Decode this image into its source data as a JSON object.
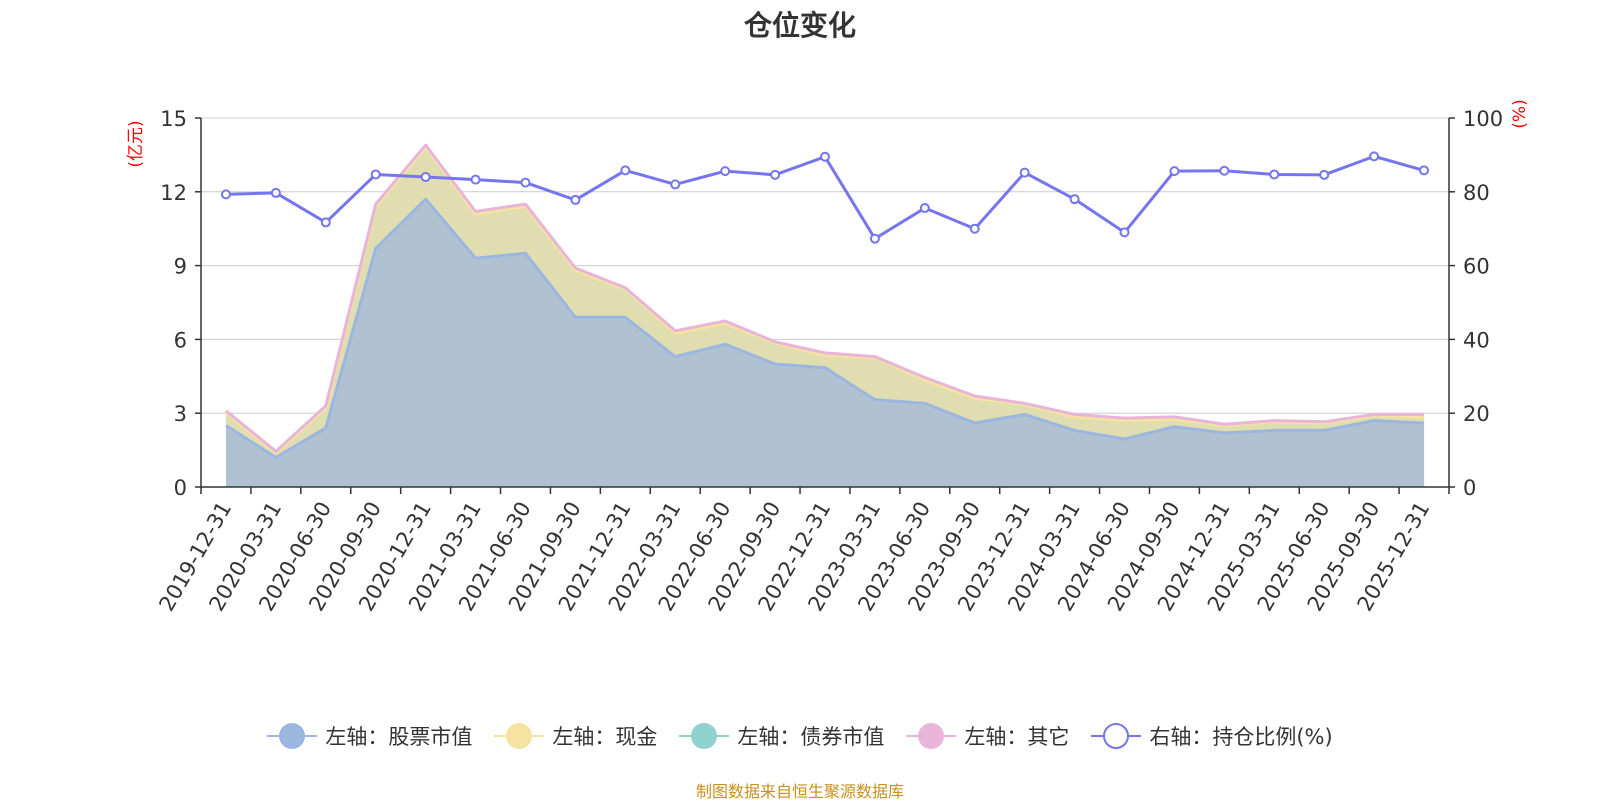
{
  "title": "仓位变化",
  "source_note": "制图数据来自恒生聚源数据库",
  "colors": {
    "stock": "#9bb7e0",
    "cash": "#f6e3a1",
    "bond": "#8fd3d0",
    "other": "#e8b4d8",
    "position": "#7575ee",
    "axis_title": "#ff0000",
    "source": "#c8901e"
  },
  "legend": [
    {
      "key": "stock",
      "label": "左轴：股票市值"
    },
    {
      "key": "cash",
      "label": "左轴：现金"
    },
    {
      "key": "bond",
      "label": "左轴：债券市值"
    },
    {
      "key": "other",
      "label": "左轴：其它"
    },
    {
      "key": "position",
      "label": "右轴：持仓比例(%)"
    }
  ],
  "chart_data": {
    "type": "area",
    "title": "仓位变化",
    "categories": [
      "2019-12-31",
      "2020-03-31",
      "2020-06-30",
      "2020-09-30",
      "2020-12-31",
      "2021-03-31",
      "2021-06-30",
      "2021-09-30",
      "2021-12-31",
      "2022-03-31",
      "2022-06-30",
      "2022-09-30",
      "2022-12-31",
      "2023-03-31",
      "2023-06-30",
      "2023-09-30",
      "2023-12-31",
      "2024-03-31",
      "2024-06-30",
      "2024-09-30",
      "2024-12-31",
      "2025-03-31",
      "2025-06-30",
      "2025-09-30",
      "2025-12-31"
    ],
    "left_axis": {
      "label": "(亿元)",
      "ylim": [
        0,
        15
      ],
      "ticks": [
        0,
        3,
        6,
        9,
        12,
        15
      ]
    },
    "right_axis": {
      "label": "(%)",
      "ylim": [
        0,
        100
      ],
      "ticks": [
        0,
        20,
        40,
        60,
        80,
        100
      ]
    },
    "stacked": true,
    "series": [
      {
        "key": "stock",
        "name": "左轴：股票市值",
        "axis": "left",
        "type": "area",
        "values": [
          2.5,
          1.2,
          2.4,
          9.7,
          11.7,
          9.3,
          9.5,
          6.9,
          6.9,
          5.3,
          5.8,
          5.0,
          4.85,
          3.55,
          3.4,
          2.6,
          2.95,
          2.3,
          1.95,
          2.45,
          2.2,
          2.3,
          2.3,
          2.7,
          2.6
        ]
      },
      {
        "key": "cash",
        "name": "左轴：现金",
        "axis": "left",
        "type": "area",
        "values": [
          0.5,
          0.2,
          0.8,
          1.7,
          2.1,
          1.8,
          1.9,
          1.9,
          1.15,
          0.95,
          0.85,
          0.85,
          0.5,
          1.7,
          0.95,
          1.0,
          0.4,
          0.55,
          0.75,
          0.3,
          0.3,
          0.35,
          0.3,
          0.2,
          0.25
        ]
      },
      {
        "key": "bond",
        "name": "左轴：债券市值",
        "axis": "left",
        "type": "area",
        "values": [
          0,
          0,
          0,
          0,
          0,
          0,
          0,
          0,
          0,
          0,
          0,
          0,
          0,
          0,
          0,
          0,
          0,
          0,
          0,
          0,
          0,
          0,
          0,
          0,
          0
        ]
      },
      {
        "key": "other",
        "name": "左轴：其它",
        "axis": "left",
        "type": "area",
        "values": [
          0.1,
          0.05,
          0.1,
          0.1,
          0.1,
          0.1,
          0.1,
          0.1,
          0.05,
          0.1,
          0.1,
          0.05,
          0.1,
          0.05,
          0.1,
          0.1,
          0.05,
          0.1,
          0.1,
          0.1,
          0.05,
          0.05,
          0.05,
          0.05,
          0.1
        ]
      },
      {
        "key": "position",
        "name": "右轴：持仓比例(%)",
        "axis": "right",
        "type": "line",
        "values": [
          79.3,
          79.7,
          71.7,
          84.7,
          84.0,
          83.3,
          82.5,
          77.8,
          85.8,
          82.0,
          85.6,
          84.6,
          89.5,
          67.3,
          75.6,
          70.0,
          85.2,
          78.0,
          69.0,
          85.6,
          85.7,
          84.7,
          84.6,
          89.6,
          85.8
        ]
      }
    ]
  }
}
